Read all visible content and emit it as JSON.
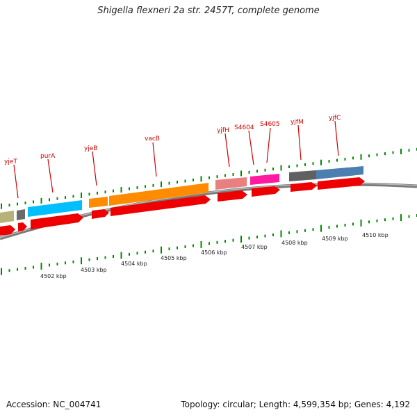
{
  "title": "Shigella flexneri 2a str. 2457T, complete genome",
  "footer": {
    "accession": "Accession: NC_004741",
    "summary": "Topology: circular; Length: 4,599,354 bp; Genes: 4,192"
  },
  "colors": {
    "label_red": "#cc0000",
    "cds_red": "#ee0000",
    "tick_green": "#008800",
    "backbone_grey": "#888888"
  },
  "genes": [
    {
      "id": "yjeT",
      "label": "yjeT"
    },
    {
      "id": "purA",
      "label": "purA"
    },
    {
      "id": "yjeB",
      "label": "yjeB"
    },
    {
      "id": "vacB",
      "label": "vacB"
    },
    {
      "id": "yjfH",
      "label": "yjfH"
    },
    {
      "id": "S4604",
      "label": "S4604"
    },
    {
      "id": "S4605",
      "label": "S4605"
    },
    {
      "id": "yjfM",
      "label": "yjfM"
    },
    {
      "id": "yjfC",
      "label": "yjfC"
    }
  ],
  "scale_labels": [
    "4502 kbp",
    "4503 kbp",
    "4504 kbp",
    "4505 kbp",
    "4506 kbp",
    "4507 kbp",
    "4508 kbp",
    "4509 kbp",
    "4510 kbp"
  ]
}
